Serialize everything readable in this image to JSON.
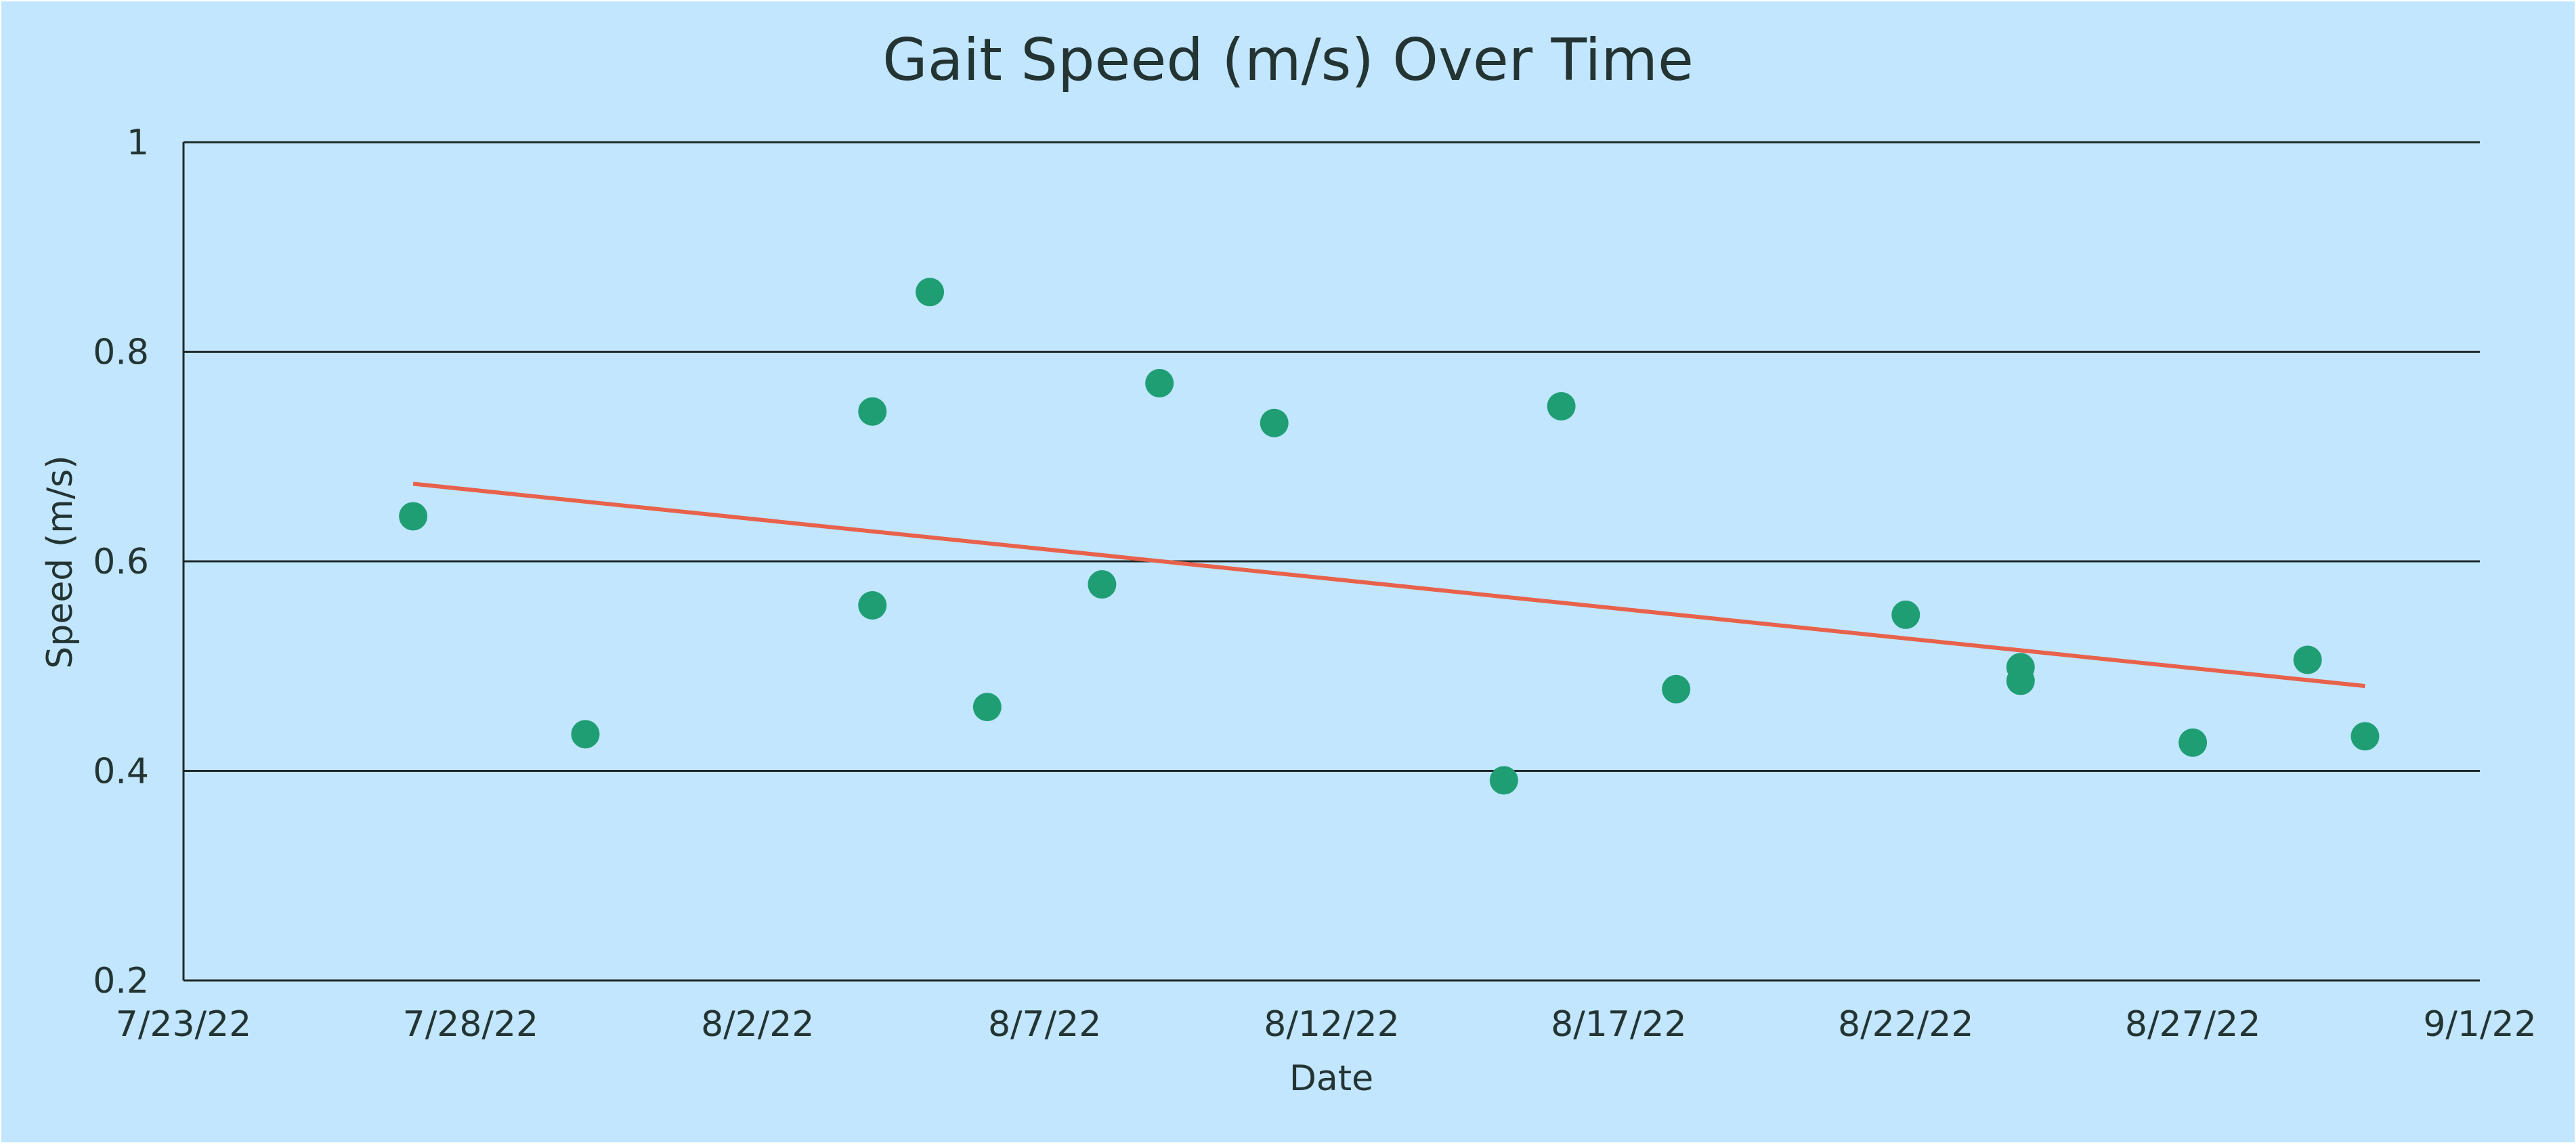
{
  "colors": {
    "background": "#c1e6fe",
    "point": "#1f9e74",
    "trendline": "#e8614b",
    "text": "#233433",
    "grid": "#1f2a2a"
  },
  "chart_data": {
    "type": "scatter",
    "title": "Gait Speed (m/s) Over Time",
    "xlabel": "Date",
    "ylabel": "Speed (m/s)",
    "x_axis_type": "date",
    "xlim": [
      "2022-07-23",
      "2022-09-01"
    ],
    "x_tick_labels": [
      "7/23/22",
      "7/28/22",
      "8/2/22",
      "8/7/22",
      "8/12/22",
      "8/17/22",
      "8/22/22",
      "8/27/22",
      "9/1/22"
    ],
    "x_tick_dates": [
      "2022-07-23",
      "2022-07-28",
      "2022-08-02",
      "2022-08-07",
      "2022-08-12",
      "2022-08-17",
      "2022-08-22",
      "2022-08-27",
      "2022-09-01"
    ],
    "ylim": [
      0.2,
      1
    ],
    "y_tick_labels": [
      "0.2",
      "0.4",
      "0.6",
      "0.8",
      "1"
    ],
    "y_tick_values": [
      0.2,
      0.4,
      0.6,
      0.8,
      1
    ],
    "grid": "horizontal",
    "legend": "none",
    "points": [
      {
        "x": "2022-07-27",
        "y": 0.643
      },
      {
        "x": "2022-07-30",
        "y": 0.435
      },
      {
        "x": "2022-08-04",
        "y": 0.743
      },
      {
        "x": "2022-08-04",
        "y": 0.558
      },
      {
        "x": "2022-08-05",
        "y": 0.857
      },
      {
        "x": "2022-08-06",
        "y": 0.461
      },
      {
        "x": "2022-08-08",
        "y": 0.578
      },
      {
        "x": "2022-08-09",
        "y": 0.77
      },
      {
        "x": "2022-08-11",
        "y": 0.732
      },
      {
        "x": "2022-08-15",
        "y": 0.391
      },
      {
        "x": "2022-08-16",
        "y": 0.748
      },
      {
        "x": "2022-08-18",
        "y": 0.478
      },
      {
        "x": "2022-08-22",
        "y": 0.549
      },
      {
        "x": "2022-08-24",
        "y": 0.499
      },
      {
        "x": "2022-08-24",
        "y": 0.486
      },
      {
        "x": "2022-08-27",
        "y": 0.427
      },
      {
        "x": "2022-08-29",
        "y": 0.506
      },
      {
        "x": "2022-08-30",
        "y": 0.433
      }
    ],
    "trendline": {
      "type": "linear",
      "start": {
        "x": "2022-07-27",
        "y": 0.674
      },
      "end": {
        "x": "2022-08-30",
        "y": 0.481
      }
    }
  }
}
